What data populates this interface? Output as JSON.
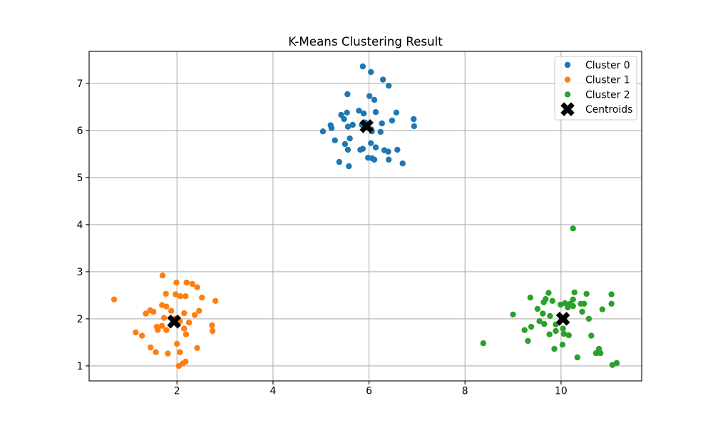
{
  "chart_data": {
    "type": "scatter",
    "title": "K-Means Clustering Result",
    "xlabel": "",
    "ylabel": "",
    "xlim": [
      0.17,
      11.68
    ],
    "ylim": [
      0.68,
      7.68
    ],
    "xticks": [
      2,
      4,
      6,
      8,
      10
    ],
    "yticks": [
      1,
      2,
      3,
      4,
      5,
      6,
      7
    ],
    "grid": true,
    "legend_position": "upper right",
    "series": [
      {
        "name": "Cluster 0",
        "color": "#1f77b4",
        "marker": "circle",
        "points": [
          [
            5.87,
            7.36
          ],
          [
            6.04,
            7.24
          ],
          [
            6.29,
            7.08
          ],
          [
            6.41,
            6.95
          ],
          [
            5.55,
            6.77
          ],
          [
            6.01,
            6.73
          ],
          [
            6.11,
            6.65
          ],
          [
            5.79,
            6.42
          ],
          [
            5.54,
            6.38
          ],
          [
            5.42,
            6.33
          ],
          [
            5.89,
            6.36
          ],
          [
            6.14,
            6.39
          ],
          [
            6.57,
            6.38
          ],
          [
            5.48,
            6.24
          ],
          [
            6.93,
            6.24
          ],
          [
            6.48,
            6.21
          ],
          [
            5.92,
            6.17
          ],
          [
            6.27,
            6.15
          ],
          [
            5.2,
            6.11
          ],
          [
            5.66,
            6.12
          ],
          [
            5.56,
            6.08
          ],
          [
            6.94,
            6.09
          ],
          [
            5.22,
            6.05
          ],
          [
            5.04,
            5.98
          ],
          [
            6.06,
            5.98
          ],
          [
            6.24,
            5.97
          ],
          [
            5.85,
            6.12
          ],
          [
            6.05,
            6.02
          ],
          [
            5.6,
            5.83
          ],
          [
            5.29,
            5.79
          ],
          [
            5.5,
            5.71
          ],
          [
            6.04,
            5.73
          ],
          [
            6.14,
            5.64
          ],
          [
            5.87,
            5.61
          ],
          [
            5.56,
            5.59
          ],
          [
            5.82,
            5.59
          ],
          [
            6.32,
            5.58
          ],
          [
            6.4,
            5.55
          ],
          [
            6.59,
            5.59
          ],
          [
            5.98,
            5.42
          ],
          [
            6.06,
            5.41
          ],
          [
            6.11,
            5.38
          ],
          [
            6.41,
            5.38
          ],
          [
            5.38,
            5.33
          ],
          [
            6.7,
            5.3
          ],
          [
            5.58,
            5.24
          ]
        ]
      },
      {
        "name": "Cluster 1",
        "color": "#ff7f0e",
        "marker": "circle",
        "points": [
          [
            1.7,
            2.92
          ],
          [
            1.99,
            2.77
          ],
          [
            2.2,
            2.77
          ],
          [
            2.32,
            2.74
          ],
          [
            2.42,
            2.67
          ],
          [
            0.69,
            2.41
          ],
          [
            1.77,
            2.53
          ],
          [
            1.97,
            2.52
          ],
          [
            2.07,
            2.48
          ],
          [
            2.18,
            2.48
          ],
          [
            2.52,
            2.45
          ],
          [
            2.8,
            2.38
          ],
          [
            1.69,
            2.29
          ],
          [
            1.78,
            2.26
          ],
          [
            1.44,
            2.18
          ],
          [
            1.51,
            2.15
          ],
          [
            1.88,
            2.17
          ],
          [
            2.46,
            2.17
          ],
          [
            2.15,
            2.12
          ],
          [
            1.35,
            2.11
          ],
          [
            2.37,
            2.08
          ],
          [
            1.73,
            2.02
          ],
          [
            1.96,
            2.0
          ],
          [
            2.06,
            1.95
          ],
          [
            2.25,
            1.92
          ],
          [
            1.58,
            1.83
          ],
          [
            1.69,
            1.85
          ],
          [
            2.73,
            1.86
          ],
          [
            2.15,
            1.79
          ],
          [
            1.6,
            1.76
          ],
          [
            1.78,
            1.76
          ],
          [
            2.74,
            1.74
          ],
          [
            1.14,
            1.71
          ],
          [
            2.19,
            1.67
          ],
          [
            1.27,
            1.64
          ],
          [
            2.0,
            1.47
          ],
          [
            1.45,
            1.39
          ],
          [
            2.42,
            1.38
          ],
          [
            1.56,
            1.29
          ],
          [
            2.06,
            1.29
          ],
          [
            1.81,
            1.26
          ],
          [
            2.18,
            1.09
          ],
          [
            2.12,
            1.05
          ],
          [
            2.04,
            1.0
          ]
        ]
      },
      {
        "name": "Cluster 2",
        "color": "#2ca02c",
        "marker": "circle",
        "points": [
          [
            10.25,
            3.92
          ],
          [
            10.28,
            2.56
          ],
          [
            9.74,
            2.55
          ],
          [
            10.53,
            2.53
          ],
          [
            11.05,
            2.52
          ],
          [
            9.36,
            2.45
          ],
          [
            9.68,
            2.42
          ],
          [
            9.82,
            2.38
          ],
          [
            10.25,
            2.41
          ],
          [
            9.64,
            2.35
          ],
          [
            9.99,
            2.3
          ],
          [
            10.08,
            2.33
          ],
          [
            10.19,
            2.32
          ],
          [
            10.41,
            2.32
          ],
          [
            10.48,
            2.32
          ],
          [
            11.05,
            2.32
          ],
          [
            9.51,
            2.21
          ],
          [
            10.14,
            2.24
          ],
          [
            10.25,
            2.27
          ],
          [
            10.86,
            2.2
          ],
          [
            10.44,
            2.15
          ],
          [
            9.0,
            2.09
          ],
          [
            9.62,
            2.11
          ],
          [
            9.77,
            2.06
          ],
          [
            10.58,
            2.0
          ],
          [
            9.55,
            1.95
          ],
          [
            9.65,
            1.89
          ],
          [
            9.89,
            1.88
          ],
          [
            9.38,
            1.83
          ],
          [
            10.04,
            1.79
          ],
          [
            9.24,
            1.76
          ],
          [
            9.89,
            1.74
          ],
          [
            10.06,
            1.68
          ],
          [
            9.76,
            1.67
          ],
          [
            10.16,
            1.65
          ],
          [
            10.63,
            1.64
          ],
          [
            9.31,
            1.53
          ],
          [
            8.38,
            1.48
          ],
          [
            10.03,
            1.45
          ],
          [
            9.86,
            1.36
          ],
          [
            10.79,
            1.36
          ],
          [
            10.73,
            1.27
          ],
          [
            10.82,
            1.27
          ],
          [
            10.34,
            1.18
          ],
          [
            11.16,
            1.06
          ],
          [
            11.07,
            1.02
          ]
        ]
      },
      {
        "name": "Centroids",
        "color": "#000000",
        "marker": "x",
        "points": [
          [
            5.95,
            6.09
          ],
          [
            1.94,
            1.94
          ],
          [
            10.04,
            2.0
          ]
        ]
      }
    ]
  }
}
